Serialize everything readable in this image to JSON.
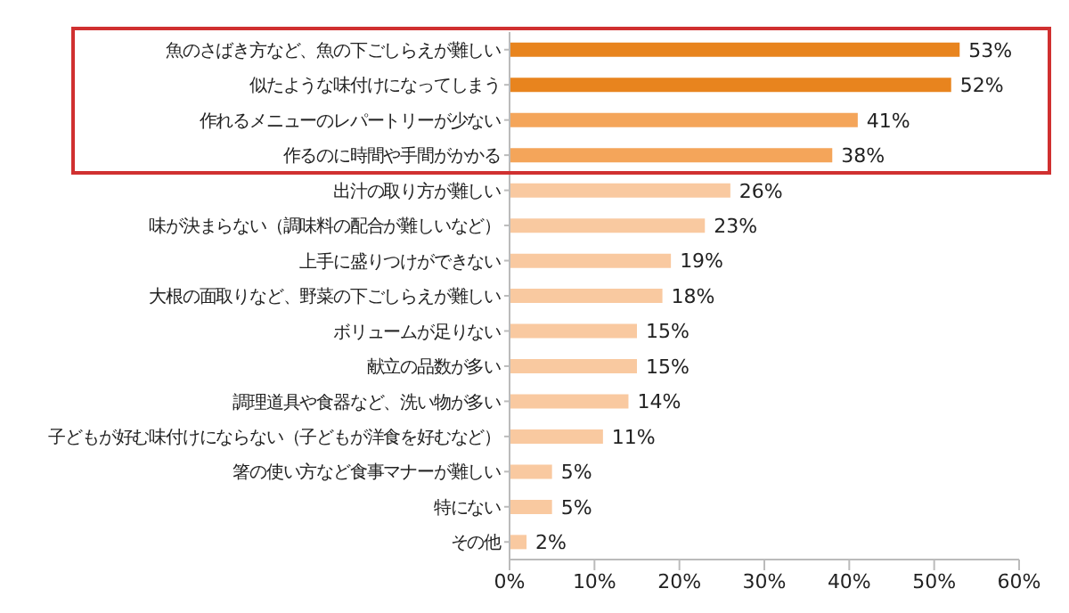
{
  "chart_data": {
    "type": "bar",
    "orientation": "horizontal",
    "categories": [
      "魚のさばき方など、魚の下ごしらえが難しい",
      "似たような味付けになってしまう",
      "作れるメニューのレパートリーが少ない",
      "作るのに時間や手間がかかる",
      "出汁の取り方が難しい",
      "味が決まらない（調味料の配合が難しいなど）",
      "上手に盛りつけができない",
      "大根の面取りなど、野菜の下ごしらえが難しい",
      "ボリュームが足りない",
      "献立の品数が多い",
      "調理道具や食器など、洗い物が多い",
      "子どもが好む味付けにならない（子どもが洋食を好むなど）",
      "箸の使い方など食事マナーが難しい",
      "特にない",
      "その他"
    ],
    "values": [
      53,
      52,
      41,
      38,
      26,
      23,
      19,
      18,
      15,
      15,
      14,
      11,
      5,
      5,
      2
    ],
    "value_labels": [
      "53%",
      "52%",
      "41%",
      "38%",
      "26%",
      "23%",
      "19%",
      "18%",
      "15%",
      "15%",
      "14%",
      "11%",
      "5%",
      "5%",
      "2%"
    ],
    "colors": [
      "#e8841e",
      "#e8841e",
      "#f4a55a",
      "#f4a55a",
      "#f9c9a0",
      "#f9c9a0",
      "#f9c9a0",
      "#f9c9a0",
      "#f9c9a0",
      "#f9c9a0",
      "#f9c9a0",
      "#f9c9a0",
      "#f9c9a0",
      "#f9c9a0",
      "#f9c9a0"
    ],
    "xlim": [
      0,
      60
    ],
    "xticks": [
      {
        "value": 0,
        "label": "0%"
      },
      {
        "value": 10,
        "label": "10%"
      },
      {
        "value": 20,
        "label": "20%"
      },
      {
        "value": 30,
        "label": "30%"
      },
      {
        "value": 40,
        "label": "40%"
      },
      {
        "value": 50,
        "label": "50%"
      },
      {
        "value": 60,
        "label": "60%"
      }
    ]
  }
}
